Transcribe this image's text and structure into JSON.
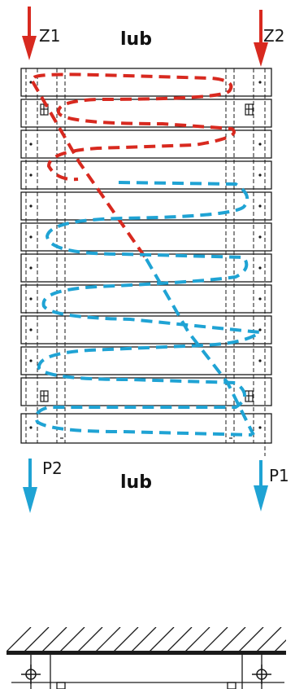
{
  "labels": {
    "z1": "Z1",
    "z2": "Z2",
    "p1": "P1",
    "p2": "P2",
    "lub_top": "lub",
    "lub_bottom": "lub"
  },
  "colors": {
    "supply_arrow": "#d8291f",
    "return_arrow": "#1fa3d4",
    "supply_path": "#d8291f",
    "return_path": "#1fa3d4",
    "line": "#1a1a1a"
  },
  "diagram": {
    "sections": 12,
    "icons": [
      "valve-icon",
      "valve-icon"
    ]
  }
}
